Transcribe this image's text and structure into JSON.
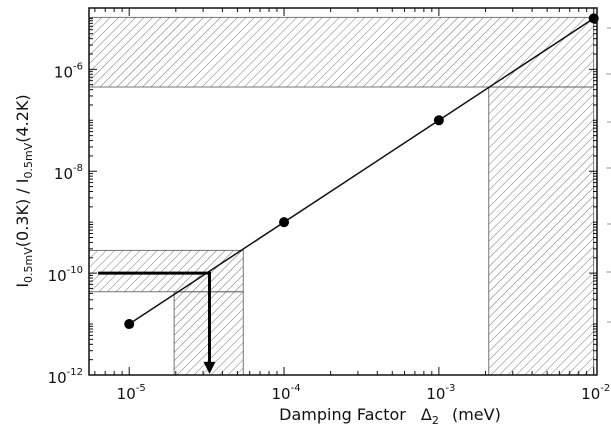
{
  "chart_data": {
    "type": "scatter",
    "xlabel": {
      "text": "Damping Factor",
      "symbol": "Δ",
      "symbol_subscript": "2",
      "unit": "(meV)"
    },
    "ylabel": {
      "part1": "I",
      "sub1": "0.5mV",
      "part2": "(0.3K) / I",
      "sub2": "0.5mV",
      "part3": "(4.2K)"
    },
    "x_scale": "log",
    "y_scale": "log",
    "xlim": [
      5.5e-06,
      0.0105
    ],
    "ylim": [
      1e-12,
      1.6e-05
    ],
    "x_ticks": [
      {
        "value": 1e-05,
        "base": "10",
        "exp": "-5"
      },
      {
        "value": 0.0001,
        "base": "10",
        "exp": "-4"
      },
      {
        "value": 0.001,
        "base": "10",
        "exp": "-3"
      },
      {
        "value": 0.01,
        "base": "10",
        "exp": "-2"
      }
    ],
    "y_ticks": [
      {
        "value": 1e-12,
        "base": "10",
        "exp": "-12"
      },
      {
        "value": 1e-10,
        "base": "10",
        "exp": "-10"
      },
      {
        "value": 1e-08,
        "base": "10",
        "exp": "-8"
      },
      {
        "value": 1e-06,
        "base": "10",
        "exp": "-6"
      }
    ],
    "series": [
      {
        "x": [
          1e-05,
          0.0001,
          0.001,
          0.01
        ],
        "y": [
          1e-11,
          1e-09,
          1e-07,
          1e-05
        ],
        "marker": "filled-circle",
        "line": "linear-fit"
      }
    ],
    "shaded_regions": [
      {
        "orientation": "horizontal",
        "y_range": [
          4.5e-07,
          1.05e-05
        ],
        "x_range": [
          5.5e-06,
          0.01
        ]
      },
      {
        "orientation": "vertical",
        "x_range": [
          0.0021,
          0.01
        ],
        "y_range": [
          1e-12,
          4.5e-07
        ]
      },
      {
        "orientation": "horizontal",
        "y_range": [
          4.3e-11,
          2.8e-10
        ],
        "x_range": [
          5.5e-06,
          5.45e-05
        ]
      },
      {
        "orientation": "vertical",
        "x_range": [
          1.95e-05,
          5.45e-05
        ],
        "y_range": [
          1e-12,
          4.3e-11
        ]
      }
    ],
    "arrow": {
      "horizontal_from_x": 6.3e-06,
      "y": 1e-10,
      "corner_x": 3.3e-05,
      "down_to_y": 1.05e-12
    },
    "grid": false,
    "colors": {
      "line": "#111111",
      "marker": "#000000",
      "hatch": "#777777",
      "shade_border": "#555555",
      "arrow": "#000000"
    }
  }
}
